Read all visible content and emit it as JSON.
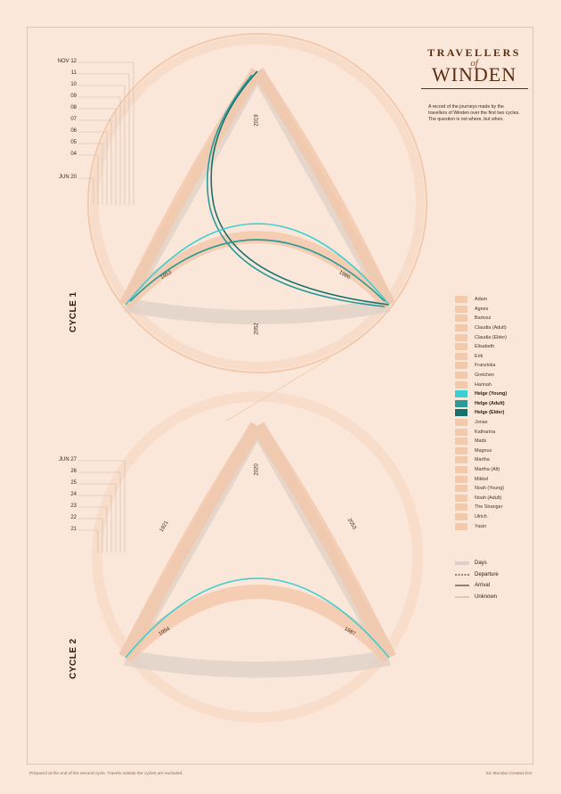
{
  "title": {
    "line1": "TRAVELLERS",
    "line2": "of",
    "line3": "WINDEN"
  },
  "blurb": "A record of the journeys made by the travellers of Winden over the first two cycles. The question is not where, but when.",
  "cycles": [
    {
      "label": "CYCLE 1",
      "date_labels": [
        "NOV 12",
        "11",
        "10",
        "09",
        "08",
        "07",
        "06",
        "05",
        "04",
        "JUN 20"
      ],
      "years": [
        "2019",
        "1953",
        "1986",
        "2052"
      ]
    },
    {
      "label": "CYCLE 2",
      "date_labels": [
        "JUN 27",
        "26",
        "25",
        "24",
        "23",
        "22",
        "21"
      ],
      "years": [
        "2020",
        "1921",
        "2053",
        "1954",
        "1987"
      ]
    }
  ],
  "legend": {
    "travellers": [
      {
        "name": "Adam",
        "color": "#f3c9ac"
      },
      {
        "name": "Agnes",
        "color": "#f3c9ac"
      },
      {
        "name": "Bartosz",
        "color": "#f3c9ac"
      },
      {
        "name": "Claudia (Adult)",
        "color": "#f3c9ac"
      },
      {
        "name": "Claudia (Elder)",
        "color": "#f3c9ac"
      },
      {
        "name": "Elisabeth",
        "color": "#f3c9ac"
      },
      {
        "name": "Erik",
        "color": "#f3c9ac"
      },
      {
        "name": "Franziska",
        "color": "#f3c9ac"
      },
      {
        "name": "Gretchen",
        "color": "#f3c9ac"
      },
      {
        "name": "Hannah",
        "color": "#f3c9ac"
      },
      {
        "name": "Helge (Young)",
        "color": "#3ccfd0",
        "highlight": true
      },
      {
        "name": "Helge (Adult)",
        "color": "#2b9a98",
        "highlight": true
      },
      {
        "name": "Helge (Elder)",
        "color": "#16706c",
        "highlight": true
      },
      {
        "name": "Jonas",
        "color": "#f3c9ac"
      },
      {
        "name": "Katharina",
        "color": "#f3c9ac"
      },
      {
        "name": "Mads",
        "color": "#f3c9ac"
      },
      {
        "name": "Magnus",
        "color": "#f3c9ac"
      },
      {
        "name": "Martha",
        "color": "#f3c9ac"
      },
      {
        "name": "Martha (Alt)",
        "color": "#f3c9ac"
      },
      {
        "name": "Mikkel",
        "color": "#f3c9ac"
      },
      {
        "name": "Noah (Young)",
        "color": "#f3c9ac"
      },
      {
        "name": "Noah (Adult)",
        "color": "#f3c9ac"
      },
      {
        "name": "The Stranger",
        "color": "#f3c9ac"
      },
      {
        "name": "Ulrich",
        "color": "#f3c9ac"
      },
      {
        "name": "Yasin",
        "color": "#f3c9ac"
      }
    ],
    "keys": [
      {
        "label": "Days",
        "style": "thick"
      },
      {
        "label": "Departure",
        "style": "dashed"
      },
      {
        "label": "Arrival",
        "style": "solid"
      },
      {
        "label": "Unknown",
        "style": "thin"
      }
    ]
  },
  "footer": {
    "left": "Prepared at the end of the second cycle. Travels outside the cycles are excluded.",
    "right": "Sic Mundus Creatus Est"
  },
  "colors": {
    "background": "#fbe7da",
    "peach": "#f3c9ac",
    "grey": "#ddd0c6",
    "teal_light": "#3ccfd0",
    "teal_mid": "#2b9a98",
    "teal_dark": "#16706c"
  }
}
